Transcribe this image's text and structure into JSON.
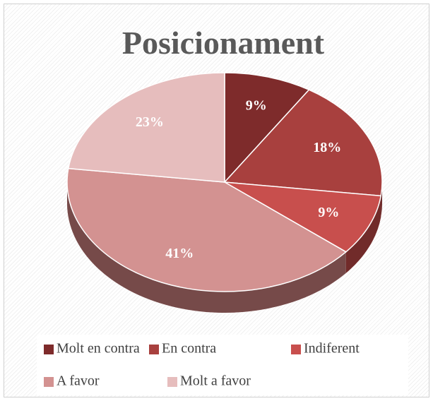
{
  "chart_data": {
    "type": "pie",
    "title": "Posicionament",
    "categories": [
      "Molt en contra",
      "En contra",
      "Indiferent",
      "A favor",
      "Molt a favor"
    ],
    "values": [
      9,
      18,
      9,
      41,
      23
    ],
    "value_labels": [
      "9%",
      "18%",
      "9%",
      "41%",
      "23%"
    ],
    "colors": [
      "#7e2b2b",
      "#a8403e",
      "#c84f4d",
      "#d39291",
      "#e6bdbd"
    ],
    "legend": "bottom"
  }
}
